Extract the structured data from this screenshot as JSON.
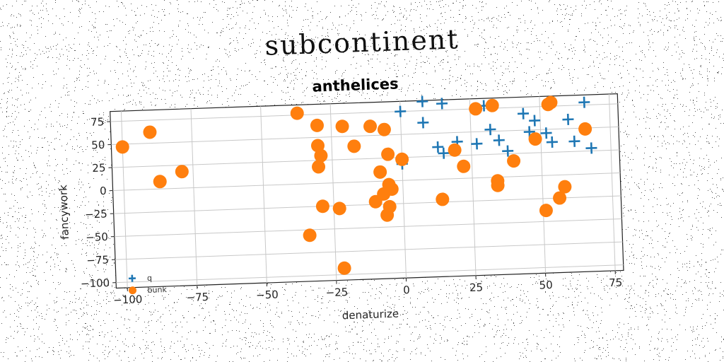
{
  "suptitle": "subcontinent",
  "chart_data": {
    "type": "scatter",
    "title": "anthelices",
    "xlabel": "denaturize",
    "ylabel": "fancywork",
    "xlim": [
      -104,
      78
    ],
    "ylim": [
      -106,
      86
    ],
    "xticks": [
      -100,
      -75,
      -50,
      -25,
      0,
      25,
      50,
      75
    ],
    "yticks": [
      -100,
      -75,
      -50,
      -25,
      0,
      25,
      50,
      75
    ],
    "grid": true,
    "legend_position": "lower-left",
    "series": [
      {
        "name": "q",
        "marker": "plus",
        "color": "#1f77b4",
        "points": [
          [
            0,
            75
          ],
          [
            8,
            85
          ],
          [
            15,
            82
          ],
          [
            8,
            62
          ],
          [
            30,
            78
          ],
          [
            32,
            52
          ],
          [
            35,
            40
          ],
          [
            38,
            28
          ],
          [
            44,
            68
          ],
          [
            48,
            60
          ],
          [
            46,
            48
          ],
          [
            52,
            46
          ],
          [
            54,
            36
          ],
          [
            60,
            60
          ],
          [
            62,
            36
          ],
          [
            66,
            78
          ],
          [
            68,
            28
          ],
          [
            20,
            40
          ],
          [
            13,
            35
          ],
          [
            15,
            28
          ],
          [
            27,
            37
          ],
          [
            0,
            18
          ]
        ]
      },
      {
        "name": "bunk",
        "color": "#ff7f0e",
        "marker": "circle",
        "points": [
          [
            -100,
            47
          ],
          [
            -90,
            62
          ],
          [
            -87,
            8
          ],
          [
            -79,
            18
          ],
          [
            -37,
            77
          ],
          [
            -30,
            63
          ],
          [
            -30,
            41
          ],
          [
            -29,
            30
          ],
          [
            -30,
            18
          ],
          [
            -21,
            61
          ],
          [
            -17,
            39
          ],
          [
            -11,
            60
          ],
          [
            -6,
            56
          ],
          [
            -5,
            29
          ],
          [
            0,
            23
          ],
          [
            -8,
            10
          ],
          [
            -5,
            -4
          ],
          [
            -4,
            -9
          ],
          [
            -7,
            -14
          ],
          [
            -10,
            -22
          ],
          [
            -5,
            -28
          ],
          [
            -6,
            -37
          ],
          [
            -29,
            -25
          ],
          [
            -23,
            -28
          ],
          [
            -34,
            -56
          ],
          [
            -22,
            -93
          ],
          [
            27,
            75
          ],
          [
            33,
            78
          ],
          [
            53,
            77
          ],
          [
            54,
            79
          ],
          [
            19,
            31
          ],
          [
            22,
            13
          ],
          [
            34,
            -4
          ],
          [
            34,
            -9
          ],
          [
            40,
            17
          ],
          [
            48,
            40
          ],
          [
            66,
            49
          ],
          [
            14,
            -22
          ],
          [
            58,
            -13
          ],
          [
            56,
            -25
          ],
          [
            51,
            -38
          ]
        ]
      }
    ]
  }
}
